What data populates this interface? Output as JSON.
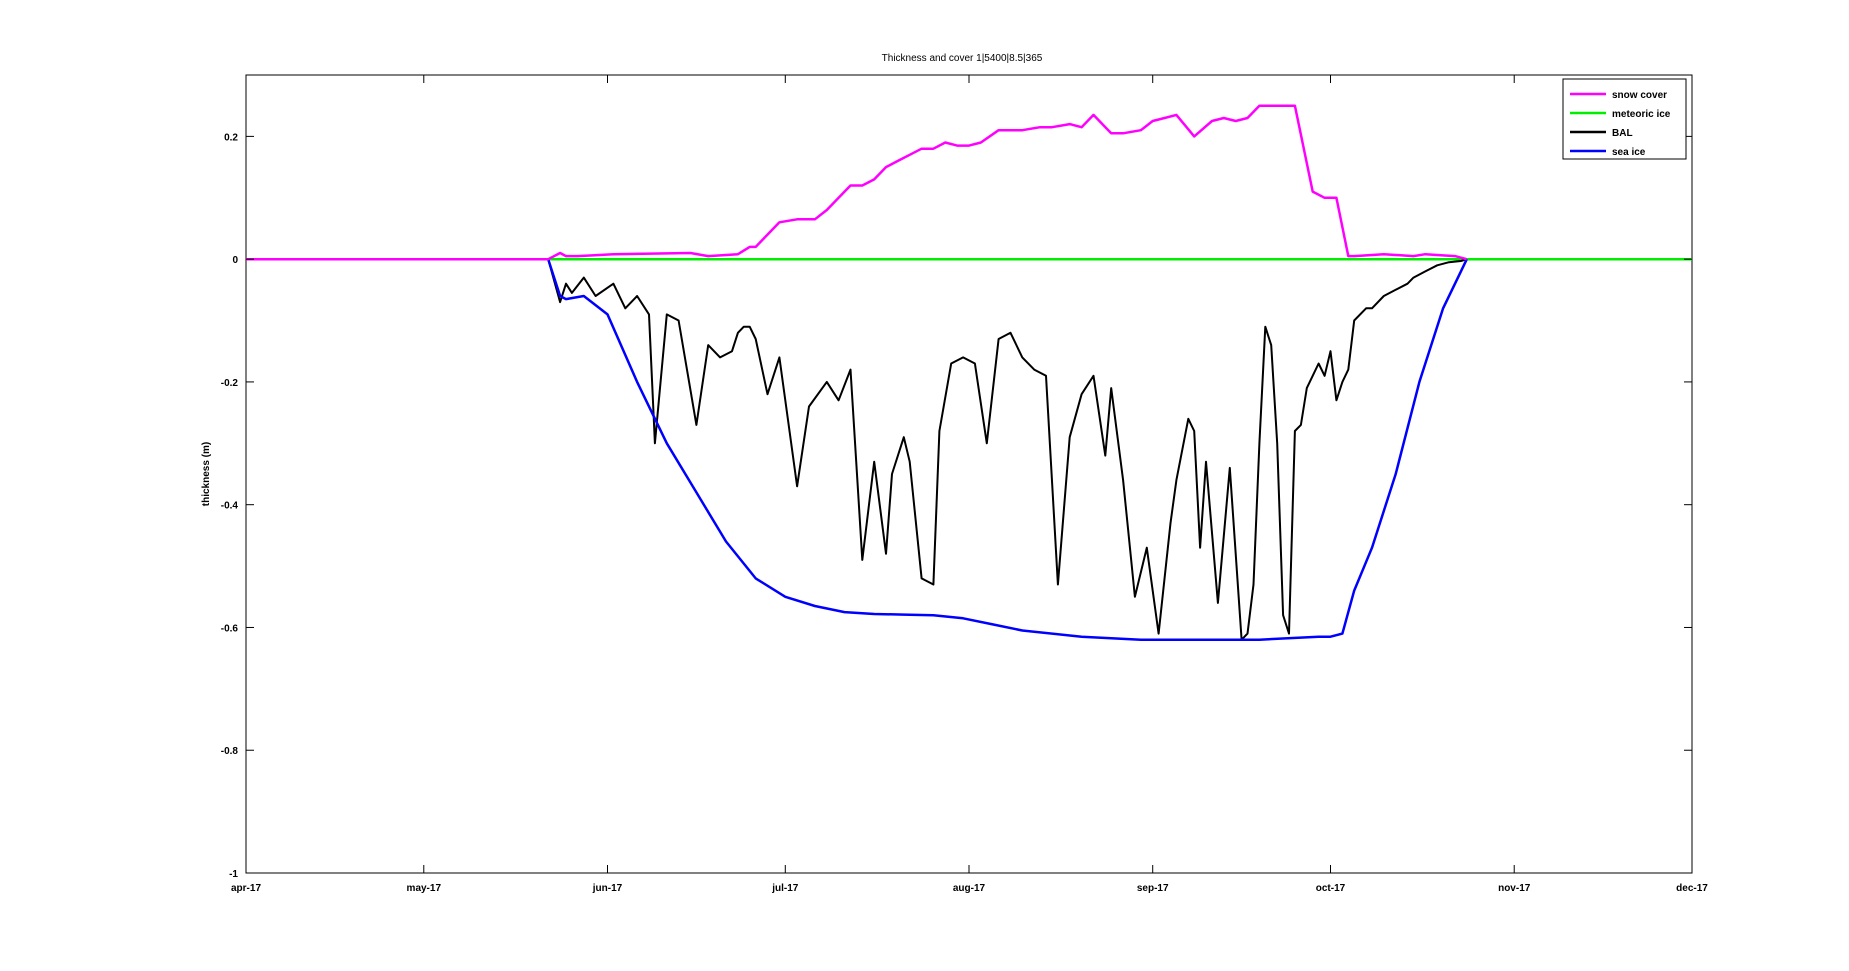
{
  "chart_data": {
    "type": "line",
    "title": "Thickness and cover 1|5400|8.5|365",
    "xlabel": "",
    "ylabel": "thickness (m)",
    "x_ticks": [
      "apr-17",
      "may-17",
      "jun-17",
      "jul-17",
      "aug-17",
      "sep-17",
      "oct-17",
      "nov-17",
      "dec-17"
    ],
    "y_ticks": [
      "0.2",
      "0",
      "-0.2",
      "-0.4",
      "-0.6",
      "-0.8",
      "-1"
    ],
    "xlim": [
      "2017-04-01",
      "2017-12-01"
    ],
    "ylim": [
      -1,
      0.3
    ],
    "grid": false,
    "legend_position": "top-right",
    "series": [
      {
        "name": "snow cover",
        "color": "#ff00ff",
        "x": [
          "2017-04-01",
          "2017-05-22",
          "2017-05-24",
          "2017-05-25",
          "2017-05-27",
          "2017-06-02",
          "2017-06-15",
          "2017-06-18",
          "2017-06-23",
          "2017-06-25",
          "2017-06-26",
          "2017-06-28",
          "2017-06-30",
          "2017-07-03",
          "2017-07-06",
          "2017-07-08",
          "2017-07-10",
          "2017-07-12",
          "2017-07-14",
          "2017-07-16",
          "2017-07-18",
          "2017-07-20",
          "2017-07-22",
          "2017-07-24",
          "2017-07-26",
          "2017-07-28",
          "2017-07-30",
          "2017-08-01",
          "2017-08-03",
          "2017-08-06",
          "2017-08-08",
          "2017-08-10",
          "2017-08-13",
          "2017-08-15",
          "2017-08-18",
          "2017-08-20",
          "2017-08-22",
          "2017-08-25",
          "2017-08-27",
          "2017-08-30",
          "2017-09-01",
          "2017-09-03",
          "2017-09-05",
          "2017-09-08",
          "2017-09-11",
          "2017-09-13",
          "2017-09-15",
          "2017-09-17",
          "2017-09-19",
          "2017-09-21",
          "2017-09-23",
          "2017-09-25",
          "2017-09-28",
          "2017-09-30",
          "2017-10-01",
          "2017-10-02",
          "2017-10-04",
          "2017-10-05",
          "2017-10-10",
          "2017-10-15",
          "2017-10-17",
          "2017-10-22",
          "2017-10-24"
        ],
        "y": [
          0,
          0,
          0.01,
          0.005,
          0.005,
          0.008,
          0.01,
          0.005,
          0.008,
          0.02,
          0.02,
          0.04,
          0.06,
          0.065,
          0.065,
          0.08,
          0.1,
          0.12,
          0.12,
          0.13,
          0.15,
          0.16,
          0.17,
          0.18,
          0.18,
          0.19,
          0.185,
          0.185,
          0.19,
          0.21,
          0.21,
          0.21,
          0.215,
          0.215,
          0.22,
          0.215,
          0.235,
          0.205,
          0.205,
          0.21,
          0.225,
          0.23,
          0.235,
          0.2,
          0.225,
          0.23,
          0.225,
          0.23,
          0.25,
          0.25,
          0.25,
          0.25,
          0.11,
          0.1,
          0.1,
          0.1,
          0.005,
          0.005,
          0.008,
          0.005,
          0.008,
          0.005,
          0
        ]
      },
      {
        "name": "meteoric ice",
        "color": "#00ee00",
        "x": [
          "2017-04-01",
          "2017-12-01"
        ],
        "y": [
          0,
          0
        ]
      },
      {
        "name": "BAL",
        "color": "#000000",
        "x": [
          "2017-04-01",
          "2017-05-22",
          "2017-05-24",
          "2017-05-25",
          "2017-05-26",
          "2017-05-28",
          "2017-05-30",
          "2017-06-02",
          "2017-06-04",
          "2017-06-06",
          "2017-06-08",
          "2017-06-09",
          "2017-06-11",
          "2017-06-13",
          "2017-06-16",
          "2017-06-18",
          "2017-06-20",
          "2017-06-22",
          "2017-06-23",
          "2017-06-24",
          "2017-06-25",
          "2017-06-26",
          "2017-06-28",
          "2017-06-30",
          "2017-07-03",
          "2017-07-05",
          "2017-07-08",
          "2017-07-10",
          "2017-07-12",
          "2017-07-14",
          "2017-07-16",
          "2017-07-18",
          "2017-07-19",
          "2017-07-21",
          "2017-07-22",
          "2017-07-24",
          "2017-07-26",
          "2017-07-27",
          "2017-07-29",
          "2017-07-31",
          "2017-08-02",
          "2017-08-04",
          "2017-08-06",
          "2017-08-08",
          "2017-08-10",
          "2017-08-12",
          "2017-08-14",
          "2017-08-16",
          "2017-08-18",
          "2017-08-20",
          "2017-08-22",
          "2017-08-24",
          "2017-08-25",
          "2017-08-27",
          "2017-08-29",
          "2017-08-31",
          "2017-09-02",
          "2017-09-04",
          "2017-09-05",
          "2017-09-07",
          "2017-09-08",
          "2017-09-09",
          "2017-09-10",
          "2017-09-12",
          "2017-09-14",
          "2017-09-16",
          "2017-09-17",
          "2017-09-18",
          "2017-09-19",
          "2017-09-20",
          "2017-09-21",
          "2017-09-22",
          "2017-09-23",
          "2017-09-24",
          "2017-09-25",
          "2017-09-26",
          "2017-09-27",
          "2017-09-28",
          "2017-09-29",
          "2017-09-30",
          "2017-10-01",
          "2017-10-02",
          "2017-10-03",
          "2017-10-04",
          "2017-10-05",
          "2017-10-07",
          "2017-10-08",
          "2017-10-10",
          "2017-10-12",
          "2017-10-14",
          "2017-10-15",
          "2017-10-17",
          "2017-10-19",
          "2017-10-21",
          "2017-10-23",
          "2017-10-24"
        ],
        "y": [
          0,
          0,
          -0.07,
          -0.04,
          -0.055,
          -0.03,
          -0.06,
          -0.04,
          -0.08,
          -0.06,
          -0.09,
          -0.3,
          -0.09,
          -0.1,
          -0.27,
          -0.14,
          -0.16,
          -0.15,
          -0.12,
          -0.11,
          -0.11,
          -0.13,
          -0.22,
          -0.16,
          -0.37,
          -0.24,
          -0.2,
          -0.23,
          -0.18,
          -0.49,
          -0.33,
          -0.48,
          -0.35,
          -0.29,
          -0.33,
          -0.52,
          -0.53,
          -0.28,
          -0.17,
          -0.16,
          -0.17,
          -0.3,
          -0.13,
          -0.12,
          -0.16,
          -0.18,
          -0.19,
          -0.53,
          -0.29,
          -0.22,
          -0.19,
          -0.32,
          -0.21,
          -0.36,
          -0.55,
          -0.47,
          -0.61,
          -0.43,
          -0.36,
          -0.26,
          -0.28,
          -0.47,
          -0.33,
          -0.56,
          -0.34,
          -0.62,
          -0.61,
          -0.53,
          -0.3,
          -0.11,
          -0.14,
          -0.3,
          -0.58,
          -0.61,
          -0.28,
          -0.27,
          -0.21,
          -0.19,
          -0.17,
          -0.19,
          -0.15,
          -0.23,
          -0.2,
          -0.18,
          -0.1,
          -0.08,
          -0.08,
          -0.06,
          -0.05,
          -0.04,
          -0.03,
          -0.02,
          -0.01,
          -0.005,
          -0.003,
          0
        ]
      },
      {
        "name": "sea ice",
        "color": "#0000ff",
        "x": [
          "2017-04-01",
          "2017-05-22",
          "2017-05-24",
          "2017-05-25",
          "2017-05-28",
          "2017-06-01",
          "2017-06-06",
          "2017-06-11",
          "2017-06-16",
          "2017-06-21",
          "2017-06-26",
          "2017-07-01",
          "2017-07-06",
          "2017-07-11",
          "2017-07-16",
          "2017-07-21",
          "2017-07-26",
          "2017-07-31",
          "2017-08-05",
          "2017-08-10",
          "2017-08-20",
          "2017-08-30",
          "2017-09-09",
          "2017-09-19",
          "2017-09-29",
          "2017-10-01",
          "2017-10-03",
          "2017-10-05",
          "2017-10-08",
          "2017-10-12",
          "2017-10-16",
          "2017-10-20",
          "2017-10-23",
          "2017-10-24"
        ],
        "y": [
          0,
          0,
          -0.06,
          -0.065,
          -0.06,
          -0.09,
          -0.2,
          -0.3,
          -0.38,
          -0.46,
          -0.52,
          -0.55,
          -0.565,
          -0.575,
          -0.578,
          -0.579,
          -0.58,
          -0.585,
          -0.595,
          -0.605,
          -0.615,
          -0.62,
          -0.62,
          -0.62,
          -0.615,
          -0.615,
          -0.61,
          -0.54,
          -0.47,
          -0.35,
          -0.2,
          -0.08,
          -0.02,
          0
        ]
      }
    ]
  }
}
